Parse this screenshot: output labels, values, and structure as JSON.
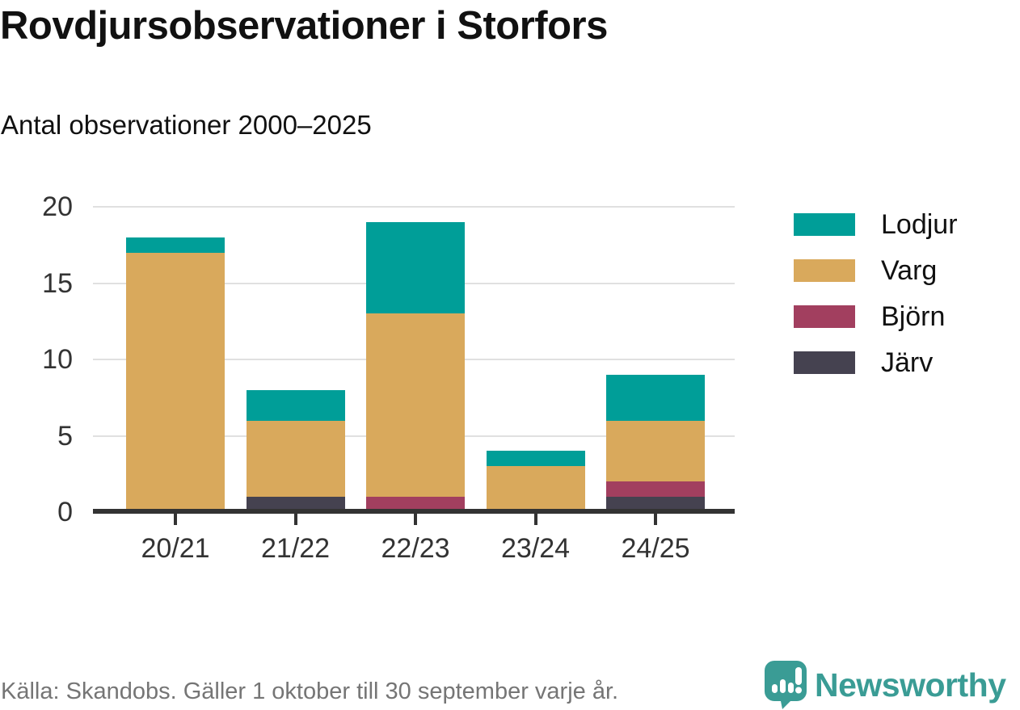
{
  "header": {
    "title": "Rovdjursobservationer i Storfors",
    "subtitle": "Antal observationer 2000–2025"
  },
  "chart_data": {
    "type": "bar",
    "stacked": true,
    "title": "Rovdjursobservationer i Storfors",
    "subtitle": "Antal observationer 2000–2025",
    "xlabel": "",
    "ylabel": "",
    "categories": [
      "20/21",
      "21/22",
      "22/23",
      "23/24",
      "24/25"
    ],
    "series": [
      {
        "name": "Järv",
        "color": "#454250",
        "values": [
          0,
          1,
          0,
          0,
          1
        ]
      },
      {
        "name": "Björn",
        "color": "#a23f5f",
        "values": [
          0,
          0,
          1,
          0,
          1
        ]
      },
      {
        "name": "Varg",
        "color": "#d9a95c",
        "values": [
          17,
          5,
          12,
          3,
          4
        ]
      },
      {
        "name": "Lodjur",
        "color": "#009e98",
        "values": [
          1,
          2,
          6,
          1,
          3
        ]
      }
    ],
    "totals": [
      18,
      8,
      19,
      4,
      9
    ],
    "ylim": [
      0,
      20
    ],
    "yticks": [
      0,
      5,
      10,
      15,
      20
    ],
    "grid": true,
    "legend": {
      "position": "right",
      "order": [
        "Lodjur",
        "Varg",
        "Björn",
        "Järv"
      ]
    }
  },
  "footer": {
    "source": "Källa: Skandobs. Gäller 1 oktober till 30 september varje år.",
    "brand": "Newsworthy"
  },
  "colors": {
    "axis": "#333333",
    "grid": "#e0e0e0",
    "text": "#111111",
    "muted": "#757575",
    "brand_teal": "#3a9c95"
  }
}
